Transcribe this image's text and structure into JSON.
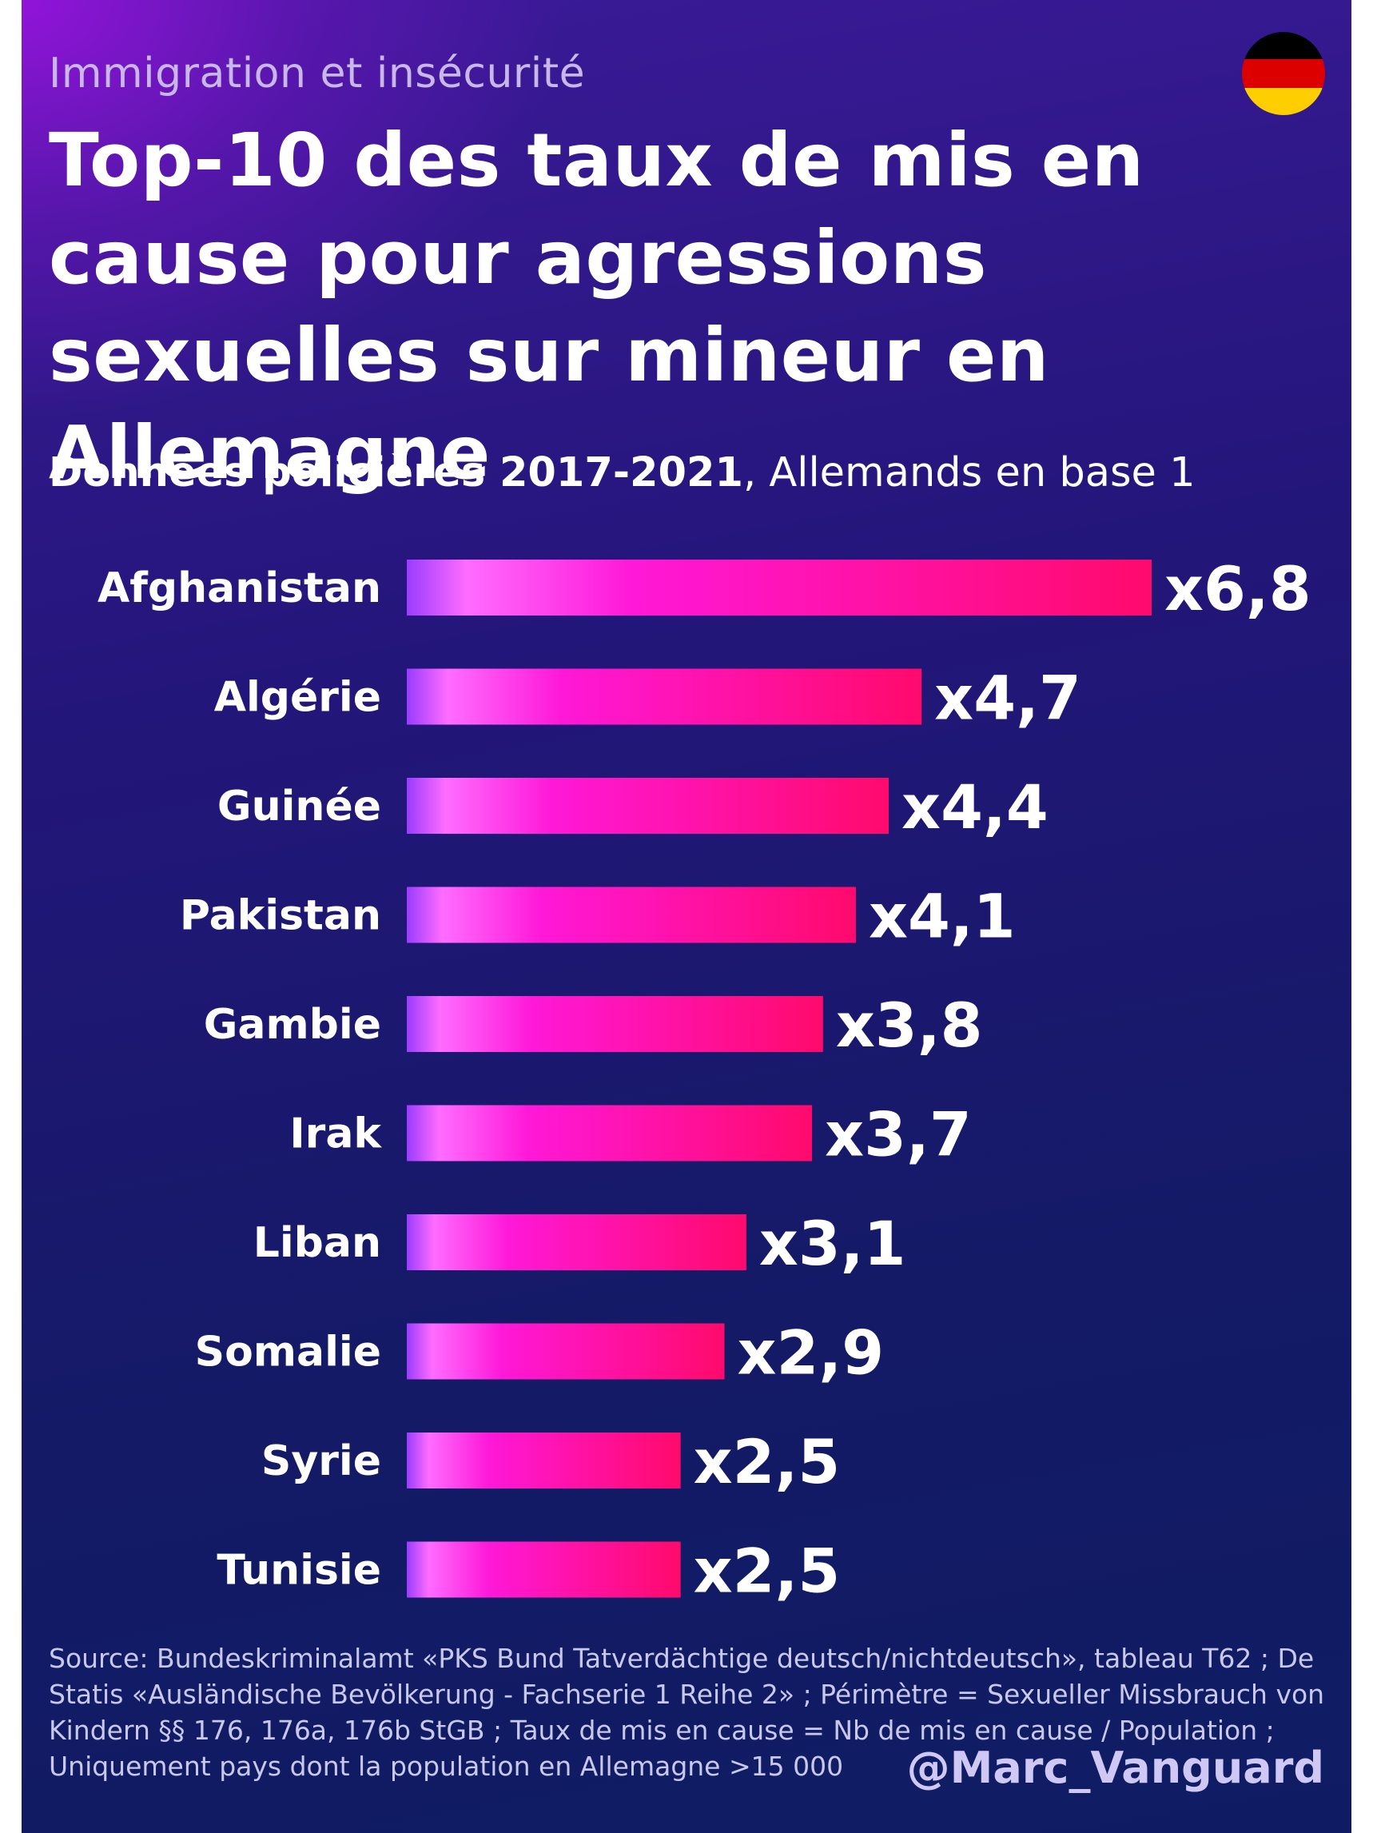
{
  "header": {
    "kicker": "Immigration et insécurité",
    "title": "Top-10 des taux de mis en cause pour agressions sexuelles sur mineur en Allemagne",
    "subtitle_bold": "Données policières 2017-2021",
    "subtitle_rest": ", Allemands en base 1"
  },
  "flag": {
    "icon": "germany-flag-icon",
    "colors": [
      "#000000",
      "#DD0000",
      "#FFCE00"
    ]
  },
  "chart_data": {
    "type": "bar",
    "orientation": "horizontal",
    "categories": [
      "Afghanistan",
      "Algérie",
      "Guinée",
      "Pakistan",
      "Gambie",
      "Irak",
      "Liban",
      "Somalie",
      "Syrie",
      "Tunisie"
    ],
    "values": [
      6.8,
      4.7,
      4.4,
      4.1,
      3.8,
      3.7,
      3.1,
      2.9,
      2.5,
      2.5
    ],
    "value_labels": [
      "x6,8",
      "x4,7",
      "x4,4",
      "x4,1",
      "x3,8",
      "x3,7",
      "x3,1",
      "x2,9",
      "x2,5",
      "x2,5"
    ],
    "xlim": [
      0,
      6.8
    ],
    "grid": false,
    "legend": "none",
    "bar_colors": [
      "#9a3cff",
      "#ff6cff",
      "#ff18d8",
      "#ff0a6c"
    ]
  },
  "footer": {
    "source": "Source: Bundeskriminalamt «PKS Bund Tatverdächtige deutsch/nichtdeutsch», tableau T62 ; De Statis «Ausländische Bevölkerung - Fachserie 1 Reihe 2» ; Périmètre = Sexueller Missbrauch von Kindern §§ 176, 176a, 176b StGB ; Taux de mis en cause = Nb de mis en cause / Population ; Uniquement pays dont la population en Allemagne >15 000",
    "handle": "@Marc_Vanguard"
  }
}
